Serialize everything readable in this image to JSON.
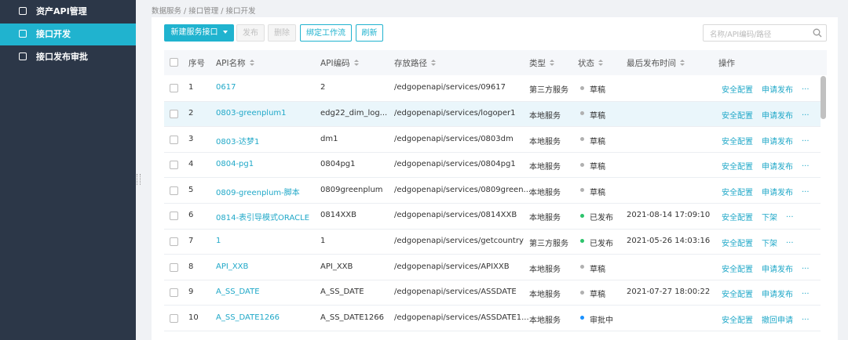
{
  "sidebar": {
    "items": [
      {
        "label": "资产API管理",
        "active": false
      },
      {
        "label": "接口开发",
        "active": true
      },
      {
        "label": "接口发布审批",
        "active": false
      }
    ]
  },
  "breadcrumb": "数据服务 / 接口管理 / 接口开发",
  "toolbar": {
    "buttons": [
      {
        "label": "新建服务接口",
        "style": "primary",
        "dropdown": true
      },
      {
        "label": "发布",
        "style": "disabled"
      },
      {
        "label": "删除",
        "style": "disabled"
      },
      {
        "label": "绑定工作流",
        "style": "outline"
      },
      {
        "label": "刷新",
        "style": "outline"
      }
    ],
    "search_placeholder": "名称/API编码/路径"
  },
  "table": {
    "columns": [
      {
        "label": "序号",
        "sortable": false
      },
      {
        "label": "API名称",
        "sortable": true
      },
      {
        "label": "API编码",
        "sortable": true
      },
      {
        "label": "存放路径",
        "sortable": true
      },
      {
        "label": "类型",
        "sortable": true
      },
      {
        "label": "状态",
        "sortable": true
      },
      {
        "label": "最后发布时间",
        "sortable": true
      },
      {
        "label": "操作",
        "sortable": false
      }
    ],
    "highlighted_row": 1,
    "rows": [
      {
        "no": "1",
        "name": "0617",
        "code": "2",
        "path": "/edgopenapi/services/09617",
        "type": "第三方服务",
        "status": "草稿",
        "status_color": "#b0b0b0",
        "published": null,
        "actions": [
          "安全配置",
          "申请发布",
          "..."
        ]
      },
      {
        "no": "2",
        "name": "0803-greenplum1",
        "code": "edg22_dim_log...",
        "path": "/edgopenapi/services/logoper1",
        "type": "本地服务",
        "status": "草稿",
        "status_color": "#b0b0b0",
        "published": null,
        "actions": [
          "安全配置",
          "申请发布",
          "..."
        ]
      },
      {
        "no": "3",
        "name": "0803-达梦1",
        "code": "dm1",
        "path": "/edgopenapi/services/0803dm",
        "type": "本地服务",
        "status": "草稿",
        "status_color": "#b0b0b0",
        "published": null,
        "actions": [
          "安全配置",
          "申请发布",
          "..."
        ]
      },
      {
        "no": "4",
        "name": "0804-pg1",
        "code": "0804pg1",
        "path": "/edgopenapi/services/0804pg1",
        "type": "本地服务",
        "status": "草稿",
        "status_color": "#b0b0b0",
        "published": null,
        "actions": [
          "安全配置",
          "申请发布",
          "..."
        ]
      },
      {
        "no": "5",
        "name": "0809-greenplum-脚本",
        "code": "0809greenplum",
        "path": "/edgopenapi/services/0809green...",
        "type": "本地服务",
        "status": "草稿",
        "status_color": "#b0b0b0",
        "published": null,
        "actions": [
          "安全配置",
          "申请发布",
          "..."
        ]
      },
      {
        "no": "6",
        "name": "0814-表引导模式ORACLE",
        "code": "0814XXB",
        "path": "/edgopenapi/services/0814XXB",
        "type": "本地服务",
        "status": "已发布",
        "status_color": "#2cc36b",
        "published": "2021-08-14 17:09:10",
        "actions": [
          "安全配置",
          "下架",
          "..."
        ]
      },
      {
        "no": "7",
        "name": "1",
        "code": "1",
        "path": "/edgopenapi/services/getcountry",
        "type": "第三方服务",
        "status": "已发布",
        "status_color": "#2cc36b",
        "published": "2021-05-26 14:03:16",
        "actions": [
          "安全配置",
          "下架",
          "..."
        ]
      },
      {
        "no": "8",
        "name": "API_XXB",
        "code": "API_XXB",
        "path": "/edgopenapi/services/APIXXB",
        "type": "本地服务",
        "status": "草稿",
        "status_color": "#b0b0b0",
        "published": null,
        "actions": [
          "安全配置",
          "申请发布",
          "..."
        ]
      },
      {
        "no": "9",
        "name": "A_SS_DATE",
        "code": "A_SS_DATE",
        "path": "/edgopenapi/services/ASSDATE",
        "type": "本地服务",
        "status": "草稿",
        "status_color": "#b0b0b0",
        "published": "2021-07-27 18:00:22",
        "actions": [
          "安全配置",
          "申请发布",
          "..."
        ]
      },
      {
        "no": "10",
        "name": "A_SS_DATE1266",
        "code": "A_SS_DATE1266",
        "path": "/edgopenapi/services/ASSDATE1...",
        "type": "本地服务",
        "status": "审批中",
        "status_color": "#1890ff",
        "published": null,
        "actions": [
          "安全配置",
          "撤回申请",
          "..."
        ]
      }
    ]
  }
}
